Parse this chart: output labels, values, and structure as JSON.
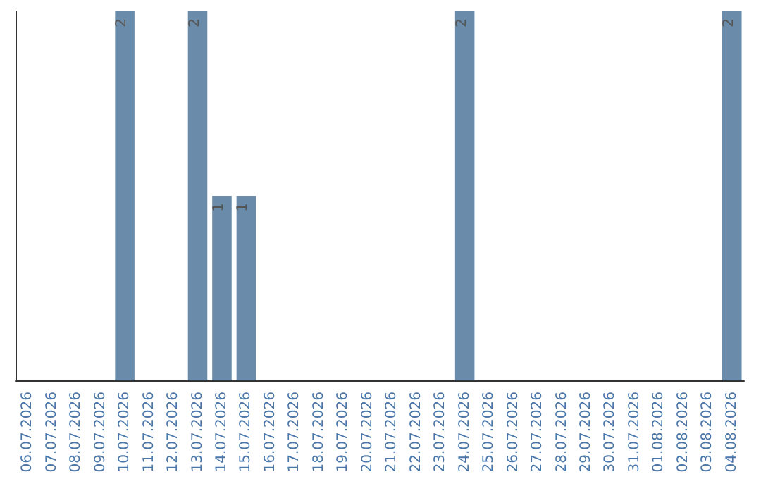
{
  "chart_data": {
    "type": "bar",
    "categories": [
      "06.07.2026",
      "07.07.2026",
      "08.07.2026",
      "09.07.2026",
      "10.07.2026",
      "11.07.2026",
      "12.07.2026",
      "13.07.2026",
      "14.07.2026",
      "15.07.2026",
      "16.07.2026",
      "17.07.2026",
      "18.07.2026",
      "19.07.2026",
      "20.07.2026",
      "21.07.2026",
      "22.07.2026",
      "23.07.2026",
      "24.07.2026",
      "25.07.2026",
      "26.07.2026",
      "27.07.2026",
      "28.07.2026",
      "29.07.2026",
      "30.07.2026",
      "31.07.2026",
      "01.08.2026",
      "02.08.2026",
      "03.08.2026",
      "04.08.2026"
    ],
    "values": [
      null,
      null,
      null,
      null,
      2,
      null,
      null,
      2,
      1,
      1,
      null,
      null,
      null,
      null,
      null,
      null,
      null,
      null,
      2,
      null,
      null,
      null,
      null,
      null,
      null,
      null,
      null,
      null,
      null,
      2
    ],
    "color": "#6a8caa",
    "data_labels": true,
    "tick_labels": "x",
    "grid": false
  }
}
